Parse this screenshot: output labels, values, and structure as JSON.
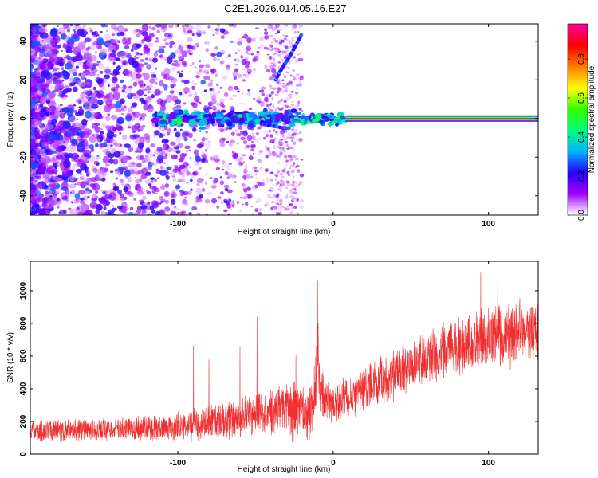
{
  "title": "C2E1.2026.014.05.16.E27",
  "colors": {
    "snr_line": "#f03030",
    "signal_core": "#ff2a00",
    "colormap": [
      "#ffffff",
      "#a000ff",
      "#2800ff",
      "#00b4ff",
      "#00ff80",
      "#30ff00",
      "#ffff00",
      "#ff8000",
      "#ff0000",
      "#ff0090"
    ]
  },
  "chart_data": [
    {
      "type": "heatmap",
      "name": "spectrogram",
      "xlabel": "Height of straight line (km)",
      "ylabel": "Frequency (Hz)",
      "xlim": [
        -195,
        132
      ],
      "ylim": [
        -50,
        49
      ],
      "xticks": [
        -100,
        0,
        100
      ],
      "xtick_labels": [
        "-100",
        "0",
        "100"
      ],
      "yticks": [
        -40,
        -20,
        0,
        20,
        40
      ],
      "ytick_labels": [
        "-40",
        "-20",
        "0",
        "20",
        "40"
      ],
      "colorbar": {
        "label": "Normalized spectral amplitude",
        "range": [
          0,
          0.98
        ],
        "ticks": [
          0,
          0.2,
          0.4,
          0.6,
          0.8
        ],
        "tick_labels": [
          "0.0",
          "0.2",
          "0.4",
          "0.6",
          "0.8"
        ]
      },
      "features": [
        {
          "name": "steady carrier",
          "x_range": [
            8,
            132
          ],
          "frequency": 0,
          "amplitude": 0.9
        },
        {
          "name": "onset band",
          "x_range": [
            -25,
            8
          ],
          "frequency": 0,
          "amplitude": 0.45
        },
        {
          "name": "scattered band",
          "x_range": [
            -115,
            -25
          ],
          "frequency": 0,
          "amplitude": 0.3
        },
        {
          "name": "rising branch",
          "x": [
            -37,
            -33,
            -28,
            -24,
            -20
          ],
          "frequency": [
            20,
            26,
            32,
            38,
            44
          ]
        },
        {
          "name": "falling branch",
          "x": [
            -45,
            -38,
            -32,
            -28
          ],
          "frequency": [
            -3,
            -4,
            -5,
            -5
          ]
        }
      ]
    },
    {
      "type": "line",
      "name": "snr",
      "xlabel": "Height of straight line (km)",
      "ylabel": "SNR (10 * v/v)",
      "xlim": [
        -195,
        132
      ],
      "ylim": [
        0,
        1180
      ],
      "xticks": [
        -100,
        0,
        100
      ],
      "xtick_labels": [
        "-100",
        "0",
        "100"
      ],
      "yticks": [
        0,
        200,
        400,
        600,
        800,
        1000
      ],
      "ytick_labels": [
        "0",
        "200",
        "400",
        "600",
        "800",
        "1000"
      ],
      "series": [
        {
          "name": "SNR",
          "x": [
            -195,
            -170,
            -150,
            -130,
            -110,
            -100,
            -90,
            -80,
            -70,
            -60,
            -50,
            -40,
            -30,
            -25,
            -20,
            -15,
            -12,
            -10,
            -8,
            -5,
            0,
            10,
            20,
            30,
            40,
            50,
            60,
            70,
            80,
            90,
            100,
            110,
            120,
            132
          ],
          "mean": [
            140,
            145,
            150,
            155,
            160,
            170,
            180,
            195,
            205,
            230,
            250,
            265,
            280,
            265,
            250,
            240,
            380,
            530,
            420,
            330,
            310,
            360,
            400,
            450,
            500,
            550,
            590,
            630,
            650,
            690,
            720,
            740,
            750,
            760
          ],
          "spread": [
            60,
            60,
            60,
            65,
            70,
            80,
            85,
            90,
            100,
            110,
            120,
            130,
            150,
            170,
            160,
            150,
            180,
            220,
            160,
            120,
            100,
            110,
            120,
            130,
            130,
            130,
            140,
            150,
            150,
            150,
            160,
            170,
            170,
            170
          ],
          "peak_x": [
            -90,
            -80,
            -60,
            -49,
            -24,
            -10,
            95,
            106
          ],
          "peak_y": [
            665,
            580,
            660,
            840,
            610,
            1060,
            1110,
            1090
          ]
        }
      ]
    }
  ]
}
